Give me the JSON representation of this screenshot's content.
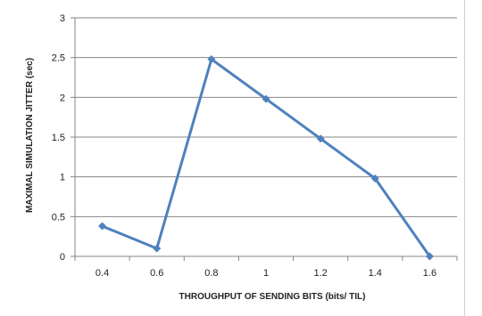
{
  "chart_data": {
    "type": "line",
    "title": "",
    "xlabel": "THROUGHPUT OF SENDING BITS (bits/ TIL)",
    "ylabel": "MAXIMAL SIMULATION JITTER (sec)",
    "categories": [
      "0.4",
      "0.6",
      "0.8",
      "1",
      "1.2",
      "1.4",
      "1.6"
    ],
    "series": [
      {
        "values": [
          0.38,
          0.1,
          2.48,
          1.98,
          1.48,
          0.98,
          0.0
        ]
      }
    ],
    "ylim": [
      0,
      3
    ],
    "yticks": [
      "0",
      "0.5",
      "1",
      "1.5",
      "2",
      "2.5",
      "3"
    ],
    "grid": true,
    "legend": "none",
    "colors": {
      "line": "#4f81bd",
      "grid": "#868686",
      "axis": "#868686"
    }
  }
}
